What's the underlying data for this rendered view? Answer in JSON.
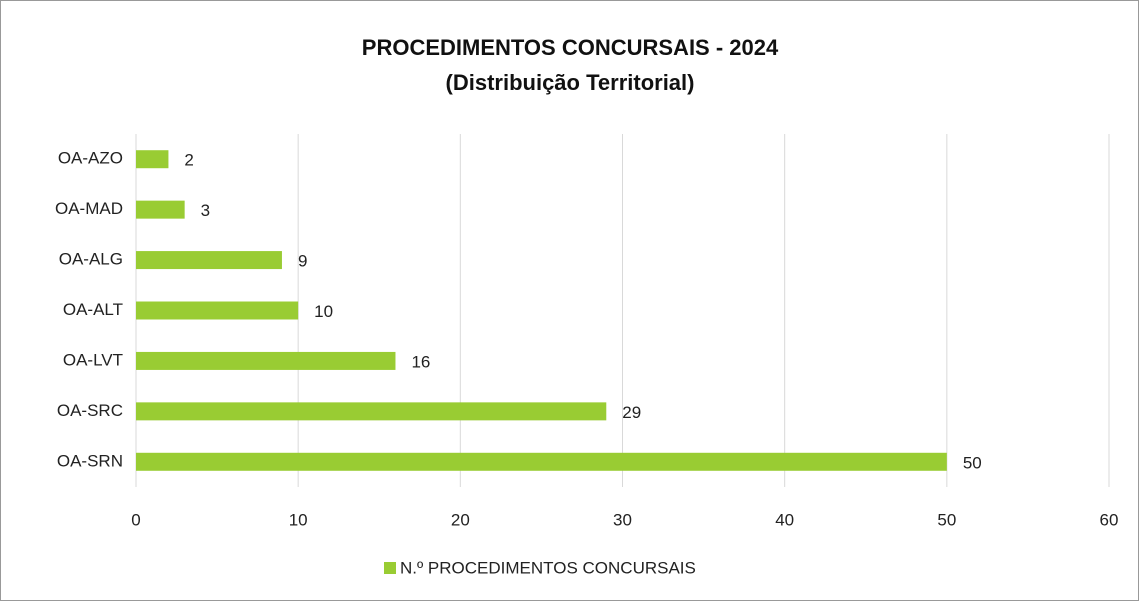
{
  "chart_data": {
    "type": "bar",
    "orientation": "horizontal",
    "title": "PROCEDIMENTOS CONCURSAIS - 2024",
    "subtitle": "(Distribuição Territorial)",
    "categories": [
      "OA-AZO",
      "OA-MAD",
      "OA-ALG",
      "OA-ALT",
      "OA-LVT",
      "OA-SRC",
      "OA-SRN"
    ],
    "series": [
      {
        "name": "N.º PROCEDIMENTOS CONCURSAIS",
        "color": "#99cc33",
        "values": [
          2,
          3,
          9,
          10,
          16,
          29,
          50
        ]
      }
    ],
    "xlim": [
      0,
      60
    ],
    "xticks": [
      0,
      10,
      20,
      30,
      40,
      50,
      60
    ],
    "grid": true,
    "legend": "bottom"
  }
}
